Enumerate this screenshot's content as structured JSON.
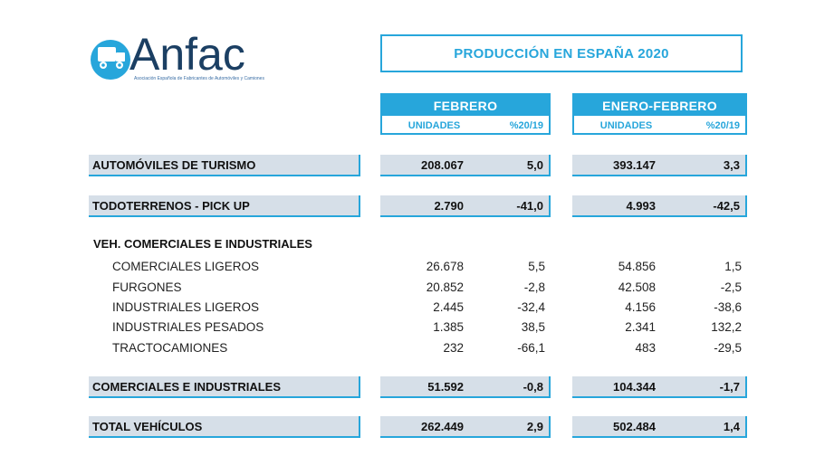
{
  "logo": {
    "word": "Anfac",
    "tagline": "Asociación Española de Fabricantes de Automóviles y Camiones",
    "brand_color": "#27a6db",
    "text_color": "#1b3f63"
  },
  "title": "PRODUCCIÓN EN ESPAÑA 2020",
  "columns": {
    "group1": "FEBRERO",
    "group2": "ENERO-FEBRERO",
    "units": "UNIDADES",
    "pct": "%20/19"
  },
  "rows": {
    "turismo": {
      "label": "AUTOMÓVILES DE TURISMO",
      "feb_units": "208.067",
      "feb_pct": "5,0",
      "ef_units": "393.147",
      "ef_pct": "3,3"
    },
    "todoterrenos": {
      "label": "TODOTERRENOS - PICK UP",
      "feb_units": "2.790",
      "feb_pct": "-41,0",
      "ef_units": "4.993",
      "ef_pct": "-42,5"
    },
    "comerciales_total": {
      "label": "COMERCIALES E INDUSTRIALES",
      "feb_units": "51.592",
      "feb_pct": "-0,8",
      "ef_units": "104.344",
      "ef_pct": "-1,7"
    },
    "total": {
      "label": "TOTAL VEHÍCULOS",
      "feb_units": "262.449",
      "feb_pct": "2,9",
      "ef_units": "502.484",
      "ef_pct": "1,4"
    }
  },
  "section_heading": "VEH. COMERCIALES E INDUSTRIALES",
  "details": [
    {
      "label": "COMERCIALES LIGEROS",
      "feb_units": "26.678",
      "feb_pct": "5,5",
      "ef_units": "54.856",
      "ef_pct": "1,5"
    },
    {
      "label": "FURGONES",
      "feb_units": "20.852",
      "feb_pct": "-2,8",
      "ef_units": "42.508",
      "ef_pct": "-2,5"
    },
    {
      "label": "INDUSTRIALES LIGEROS",
      "feb_units": "2.445",
      "feb_pct": "-32,4",
      "ef_units": "4.156",
      "ef_pct": "-38,6"
    },
    {
      "label": "INDUSTRIALES PESADOS",
      "feb_units": "1.385",
      "feb_pct": "38,5",
      "ef_units": "2.341",
      "ef_pct": "132,2"
    },
    {
      "label": "TRACTOCAMIONES",
      "feb_units": "232",
      "feb_pct": "-66,1",
      "ef_units": "483",
      "ef_pct": "-29,5"
    }
  ]
}
